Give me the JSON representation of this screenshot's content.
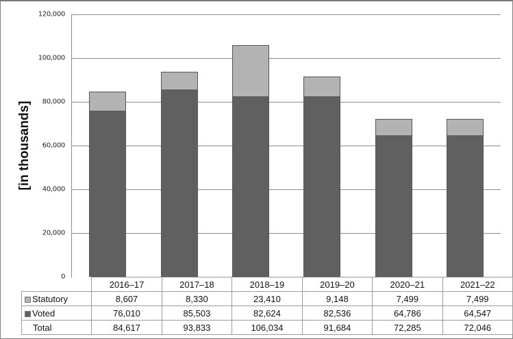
{
  "chart_data": {
    "type": "bar",
    "stacked": true,
    "title": "",
    "xlabel": "",
    "ylabel": "[in thousands]",
    "ylim": [
      0,
      120000
    ],
    "yticks": [
      "0",
      "20,000",
      "40,000",
      "60,000",
      "80,000",
      "100,000",
      "120,000"
    ],
    "grid": true,
    "legend_position": "data table",
    "categories": [
      "2016–17",
      "2017–18",
      "2018–19",
      "2019–20",
      "2020–21",
      "2021–22"
    ],
    "series": [
      {
        "name": "Statutory",
        "color": "#b3b3b3",
        "values": [
          8607,
          8330,
          23410,
          9148,
          7499,
          7499
        ],
        "labels": [
          "8,607",
          "8,330",
          "23,410",
          "9,148",
          "7,499",
          "7,499"
        ]
      },
      {
        "name": "Voted",
        "color": "#606060",
        "values": [
          76010,
          85503,
          82624,
          82536,
          64786,
          64547
        ],
        "labels": [
          "76,010",
          "85,503",
          "82,624",
          "82,536",
          "64,786",
          "64,547"
        ]
      }
    ],
    "totals": {
      "name": "Total",
      "values": [
        84617,
        93833,
        106034,
        91684,
        72285,
        72046
      ],
      "labels": [
        "84,617",
        "93,833",
        "106,034",
        "91,684",
        "72,285",
        "72,046"
      ]
    }
  }
}
